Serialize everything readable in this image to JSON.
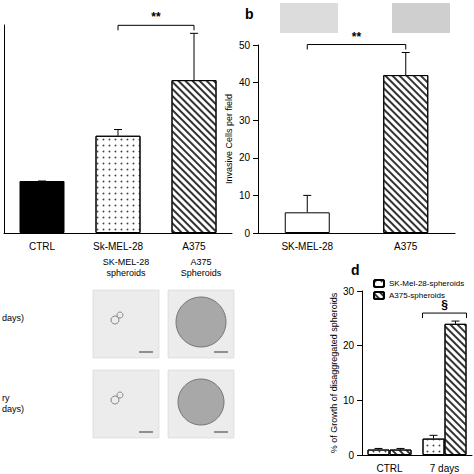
{
  "chart_data": [
    {
      "type": "bar",
      "categories": [
        "CTRL",
        "Sk-MEL-28",
        "A375"
      ],
      "values": [
        1,
        1.87,
        2.94
      ],
      "errors": [
        0,
        0.12,
        0.9
      ],
      "colors": [
        "#000000",
        "#ffffff",
        "#ffffff"
      ],
      "ylim": [
        0,
        4
      ],
      "tick_labels": "x",
      "grid": false,
      "annotations": [
        {
          "text": "**",
          "from": "Sk-MEL-28",
          "to": "A375"
        }
      ]
    },
    {
      "type": "bar",
      "title": "b",
      "categories": [
        "SK-MEL-28",
        "A375"
      ],
      "values": [
        5.5,
        42
      ],
      "errors": [
        4.5,
        6
      ],
      "colors": [
        "#ffffff",
        "#ffffff"
      ],
      "ylabel": "Invasive Cells per field",
      "ylim": [
        0,
        50
      ],
      "yticks": [
        0,
        10,
        20,
        30,
        40,
        50
      ],
      "grid": false,
      "annotations": [
        {
          "text": "**",
          "from": "SK-MEL-28",
          "to": "A375"
        }
      ]
    },
    {
      "type": "bar",
      "title": "d",
      "categories": [
        "CTRL",
        "7 days"
      ],
      "series": [
        {
          "name": "SK-Mel-28-spheroids",
          "color": "#ffffff",
          "values": [
            1,
            3
          ],
          "errors": [
            0.2,
            0.6
          ]
        },
        {
          "name": "A375-spheroids",
          "color": "#ffffff",
          "values": [
            1,
            24
          ],
          "errors": [
            0.2,
            0.5
          ]
        }
      ],
      "ylabel": "% of Growth of disaggregated spheroids",
      "ylim": [
        0,
        30
      ],
      "yticks": [
        0,
        10,
        20,
        30
      ],
      "legend": "upper left",
      "grid": false,
      "annotations": [
        {
          "text": "§",
          "category": "7 days"
        }
      ]
    }
  ],
  "image_panel": {
    "columns": [
      "SK-MEL-28\nspheroids",
      "A375\nSpheroids"
    ],
    "rows": [
      "days)",
      "ry\ndays)"
    ]
  }
}
